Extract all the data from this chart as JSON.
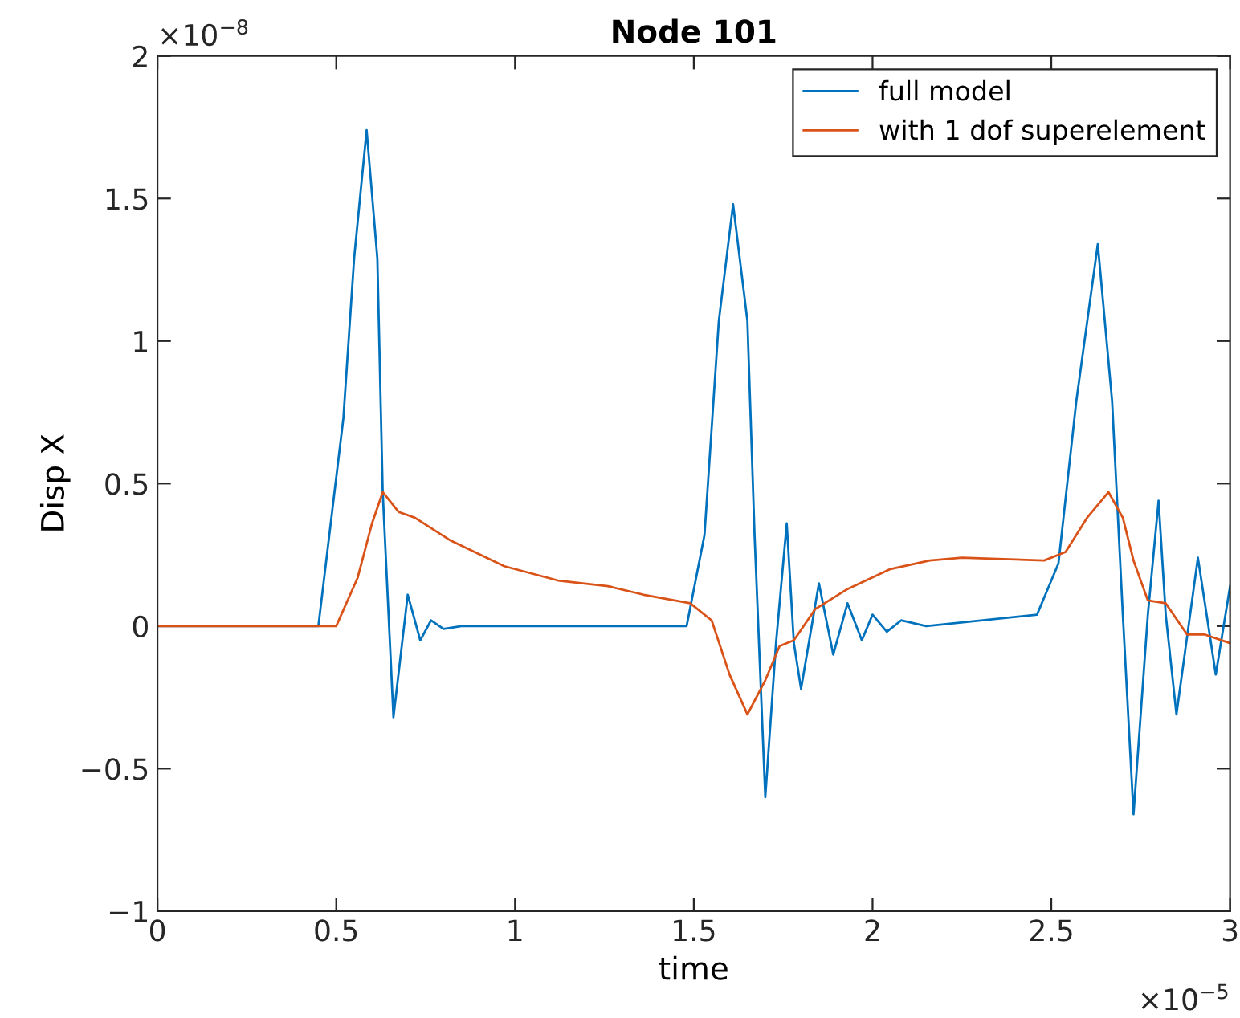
{
  "chart_data": {
    "type": "line",
    "title": "Node 101",
    "xlabel": "time",
    "ylabel": "Disp X",
    "xlim": [
      0,
      3
    ],
    "ylim": [
      -1,
      2
    ],
    "xticks": [
      0,
      0.5,
      1,
      1.5,
      2,
      2.5,
      3
    ],
    "yticks": [
      {
        "value": -1,
        "label": "−1"
      },
      {
        "value": -0.5,
        "label": "−0.5"
      },
      0,
      0.5,
      1,
      1.5,
      2
    ],
    "annotations": [
      "×10$^{−8}$",
      "×10$^{−5}$"
    ],
    "legend": "top right",
    "grid": false,
    "marker": "none",
    "line_style": "solid",
    "series": [
      {
        "name": "full model",
        "color": "#0072bd",
        "x": [
          0,
          0.45,
          0.52,
          0.55,
          0.585,
          0.615,
          0.63,
          0.66,
          0.7,
          0.735,
          0.765,
          0.8,
          0.85,
          1.48,
          1.53,
          1.57,
          1.61,
          1.65,
          1.67,
          1.7,
          1.73,
          1.76,
          1.78,
          1.8,
          1.85,
          1.89,
          1.93,
          1.97,
          2.0,
          2.04,
          2.08,
          2.15,
          2.46,
          2.52,
          2.57,
          2.63,
          2.67,
          2.7,
          2.73,
          2.77,
          2.8,
          2.82,
          2.85,
          2.91,
          2.96,
          3.0
        ],
        "values": [
          0,
          0,
          0.73,
          1.29,
          1.74,
          1.29,
          0.47,
          -0.32,
          0.11,
          -0.05,
          0.02,
          -0.01,
          0,
          0,
          0.32,
          1.07,
          1.48,
          1.07,
          0.32,
          -0.6,
          -0.06,
          0.36,
          -0.06,
          -0.22,
          0.15,
          -0.1,
          0.08,
          -0.05,
          0.04,
          -0.02,
          0.02,
          0,
          0.04,
          0.22,
          0.79,
          1.34,
          0.79,
          0.04,
          -0.66,
          0.04,
          0.44,
          0.04,
          -0.31,
          0.24,
          -0.17,
          0.14
        ]
      },
      {
        "name": "with 1 dof superelement",
        "color": "#d95319",
        "x": [
          0,
          0.5,
          0.56,
          0.6,
          0.63,
          0.675,
          0.72,
          0.82,
          0.97,
          1.12,
          1.26,
          1.36,
          1.49,
          1.55,
          1.6,
          1.65,
          1.7,
          1.74,
          1.78,
          1.84,
          1.93,
          2.05,
          2.16,
          2.25,
          2.48,
          2.54,
          2.6,
          2.66,
          2.7,
          2.73,
          2.77,
          2.82,
          2.88,
          2.93,
          3.0
        ],
        "values": [
          0,
          0,
          0.17,
          0.36,
          0.47,
          0.4,
          0.38,
          0.3,
          0.21,
          0.16,
          0.14,
          0.11,
          0.08,
          0.02,
          -0.17,
          -0.31,
          -0.19,
          -0.07,
          -0.05,
          0.06,
          0.13,
          0.2,
          0.23,
          0.24,
          0.23,
          0.26,
          0.38,
          0.47,
          0.38,
          0.23,
          0.09,
          0.08,
          -0.03,
          -0.03,
          -0.06
        ]
      }
    ]
  }
}
